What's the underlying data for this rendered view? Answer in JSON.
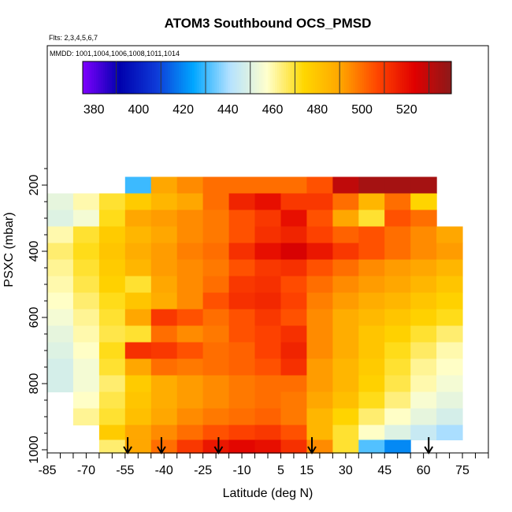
{
  "chart_data": {
    "type": "heatmap",
    "title": "ATOM3 Southbound OCS_PMSD",
    "subtitle_flights": "Flts: 2,3,4,5,6,7",
    "subtitle_dates": "MMDD: 1001,1004,1006,1008,1011,1014",
    "xlabel": "Latitude (deg N)",
    "ylabel": "PSXC (mbar)",
    "xlim": [
      -85,
      85
    ],
    "ylim": [
      1010,
      0
    ],
    "x_ticks": [
      -85,
      -70,
      -55,
      -40,
      -25,
      -10,
      5,
      15,
      30,
      45,
      60,
      75
    ],
    "x_tick_labels": [
      "-85",
      "-70",
      "-55",
      "-40",
      "-25",
      "-10",
      "5",
      "15",
      "30",
      "45",
      "60",
      "75"
    ],
    "y_ticks": [
      200,
      400,
      600,
      800,
      1000
    ],
    "y_tick_labels": [
      "200",
      "400",
      "600",
      "800",
      "1000"
    ],
    "colorbar": {
      "range": [
        375,
        540
      ],
      "ticks": [
        380,
        400,
        420,
        440,
        460,
        480,
        500,
        520
      ],
      "tick_labels": [
        "380",
        "400",
        "420",
        "440",
        "460",
        "480",
        "500",
        "520"
      ],
      "colors": [
        "#7f00ff",
        "#0000ad",
        "#0e3ad8",
        "#00a6ff",
        "#b5e2ff",
        "#ffffcc",
        "#ffd700",
        "#ffa500",
        "#ff4500",
        "#e00000",
        "#8b1a1a"
      ]
    },
    "flight_latitudes": [
      -54,
      -41,
      -19,
      17,
      62
    ],
    "pressure_levels": [
      200,
      250,
      300,
      350,
      400,
      450,
      500,
      550,
      600,
      650,
      700,
      750,
      800,
      850,
      900,
      950,
      990
    ],
    "latitude_bins": [
      -80,
      -70,
      -60,
      -50,
      -40,
      -30,
      -20,
      -10,
      0,
      10,
      20,
      30,
      40,
      50,
      60,
      70
    ],
    "values": [
      [
        null,
        null,
        null,
        430,
        490,
        495,
        500,
        500,
        500,
        500,
        505,
        530,
        535,
        535,
        535,
        null
      ],
      [
        452,
        460,
        470,
        478,
        485,
        490,
        500,
        515,
        520,
        510,
        510,
        500,
        485,
        500,
        475,
        null
      ],
      [
        450,
        455,
        472,
        490,
        492,
        495,
        498,
        505,
        510,
        520,
        505,
        490,
        470,
        505,
        500,
        null
      ],
      [
        460,
        470,
        478,
        485,
        490,
        495,
        498,
        505,
        512,
        515,
        508,
        502,
        505,
        500,
        495,
        490
      ],
      [
        465,
        472,
        480,
        488,
        492,
        497,
        500,
        512,
        520,
        525,
        518,
        510,
        505,
        500,
        495,
        492
      ],
      [
        462,
        470,
        478,
        485,
        492,
        495,
        498,
        505,
        510,
        512,
        505,
        500,
        495,
        492,
        490,
        485
      ],
      [
        460,
        468,
        476,
        470,
        490,
        495,
        500,
        510,
        512,
        506,
        500,
        495,
        492,
        490,
        485,
        480
      ],
      [
        458,
        465,
        472,
        480,
        488,
        495,
        505,
        512,
        514,
        508,
        497,
        492,
        488,
        485,
        480,
        476
      ],
      [
        455,
        462,
        470,
        490,
        510,
        505,
        500,
        505,
        510,
        505,
        495,
        488,
        484,
        480,
        476,
        472
      ],
      [
        452,
        460,
        468,
        470,
        500,
        495,
        498,
        505,
        508,
        512,
        495,
        488,
        480,
        476,
        470,
        465
      ],
      [
        450,
        458,
        472,
        512,
        510,
        505,
        500,
        502,
        508,
        515,
        495,
        488,
        480,
        472,
        466,
        460
      ],
      [
        448,
        455,
        470,
        490,
        500,
        498,
        500,
        502,
        505,
        512,
        492,
        485,
        478,
        470,
        462,
        458
      ],
      [
        448,
        455,
        465,
        478,
        488,
        492,
        495,
        498,
        500,
        500,
        492,
        485,
        476,
        468,
        460,
        455
      ],
      [
        null,
        458,
        468,
        480,
        488,
        492,
        495,
        498,
        500,
        498,
        490,
        482,
        472,
        464,
        456,
        452
      ],
      [
        null,
        462,
        470,
        482,
        490,
        495,
        498,
        500,
        502,
        498,
        485,
        475,
        465,
        458,
        452,
        448
      ],
      [
        null,
        null,
        478,
        490,
        495,
        500,
        505,
        508,
        510,
        505,
        485,
        470,
        458,
        450,
        445,
        440
      ],
      [
        null,
        null,
        465,
        490,
        500,
        510,
        518,
        522,
        520,
        512,
        495,
        470,
        432,
        420,
        null,
        null
      ]
    ]
  }
}
